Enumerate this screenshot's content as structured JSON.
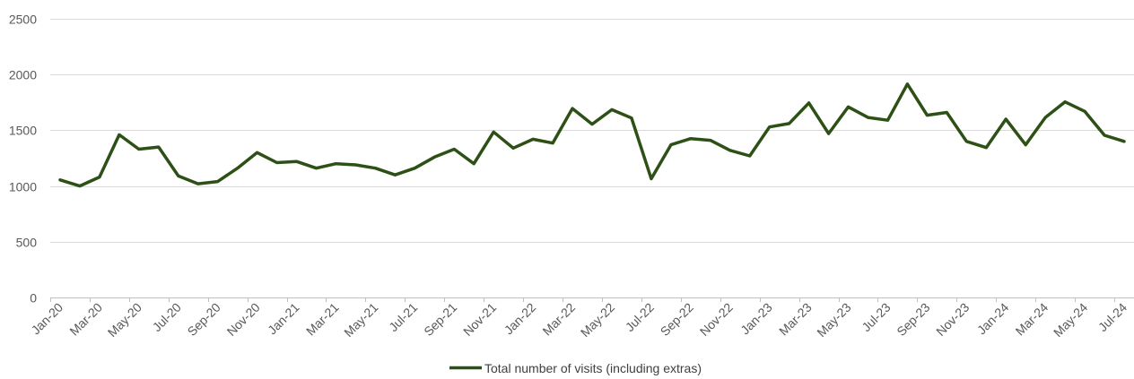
{
  "chart_data": {
    "type": "line",
    "title": "",
    "xlabel": "",
    "ylabel": "",
    "ylim": [
      0,
      2500
    ],
    "y_ticks": [
      "0",
      "500",
      "1000",
      "1500",
      "2000",
      "2500"
    ],
    "y_tick_values": [
      0,
      500,
      1000,
      1500,
      2000,
      2500
    ],
    "grid": true,
    "legend_position": "bottom",
    "x": [
      "Jan-20",
      "Feb-20",
      "Mar-20",
      "Apr-20",
      "May-20",
      "Jun-20",
      "Jul-20",
      "Aug-20",
      "Sep-20",
      "Oct-20",
      "Nov-20",
      "Dec-20",
      "Jan-21",
      "Feb-21",
      "Mar-21",
      "Apr-21",
      "May-21",
      "Jun-21",
      "Jul-21",
      "Aug-21",
      "Sep-21",
      "Oct-21",
      "Nov-21",
      "Dec-21",
      "Jan-22",
      "Feb-22",
      "Mar-22",
      "Apr-22",
      "May-22",
      "Jun-22",
      "Jul-22",
      "Aug-22",
      "Sep-22",
      "Oct-22",
      "Nov-22",
      "Dec-22",
      "Jan-23",
      "Feb-23",
      "Mar-23",
      "Apr-23",
      "May-23",
      "Jun-23",
      "Jul-23",
      "Aug-23",
      "Sep-23",
      "Oct-23",
      "Nov-23",
      "Dec-23",
      "Jan-24",
      "Feb-24",
      "Mar-24",
      "Apr-24",
      "May-24",
      "Jun-24",
      "Jul-24"
    ],
    "x_tick_labels": [
      "Jan-20",
      "Mar-20",
      "May-20",
      "Jul-20",
      "Sep-20",
      "Nov-20",
      "Jan-21",
      "Mar-21",
      "May-21",
      "Jul-21",
      "Sep-21",
      "Nov-21",
      "Jan-22",
      "Mar-22",
      "May-22",
      "Jul-22",
      "Sep-22",
      "Nov-22",
      "Jan-23",
      "Mar-23",
      "May-23",
      "Jul-23",
      "Sep-23",
      "Nov-23",
      "Jan-24",
      "Mar-24",
      "May-24",
      "Jul-24"
    ],
    "series": [
      {
        "name": "Total number of visits (including extras)",
        "color": "#2d5016",
        "values": [
          1055,
          1000,
          1080,
          1460,
          1330,
          1350,
          1090,
          1020,
          1040,
          1160,
          1300,
          1210,
          1220,
          1160,
          1200,
          1190,
          1160,
          1100,
          1160,
          1260,
          1330,
          1200,
          1485,
          1340,
          1420,
          1385,
          1695,
          1555,
          1685,
          1610,
          1065,
          1370,
          1425,
          1410,
          1320,
          1270,
          1530,
          1560,
          1745,
          1470,
          1710,
          1615,
          1590,
          1915,
          1635,
          1660,
          1400,
          1345,
          1600,
          1370,
          1615,
          1755,
          1670,
          1455,
          1400
        ]
      }
    ]
  }
}
